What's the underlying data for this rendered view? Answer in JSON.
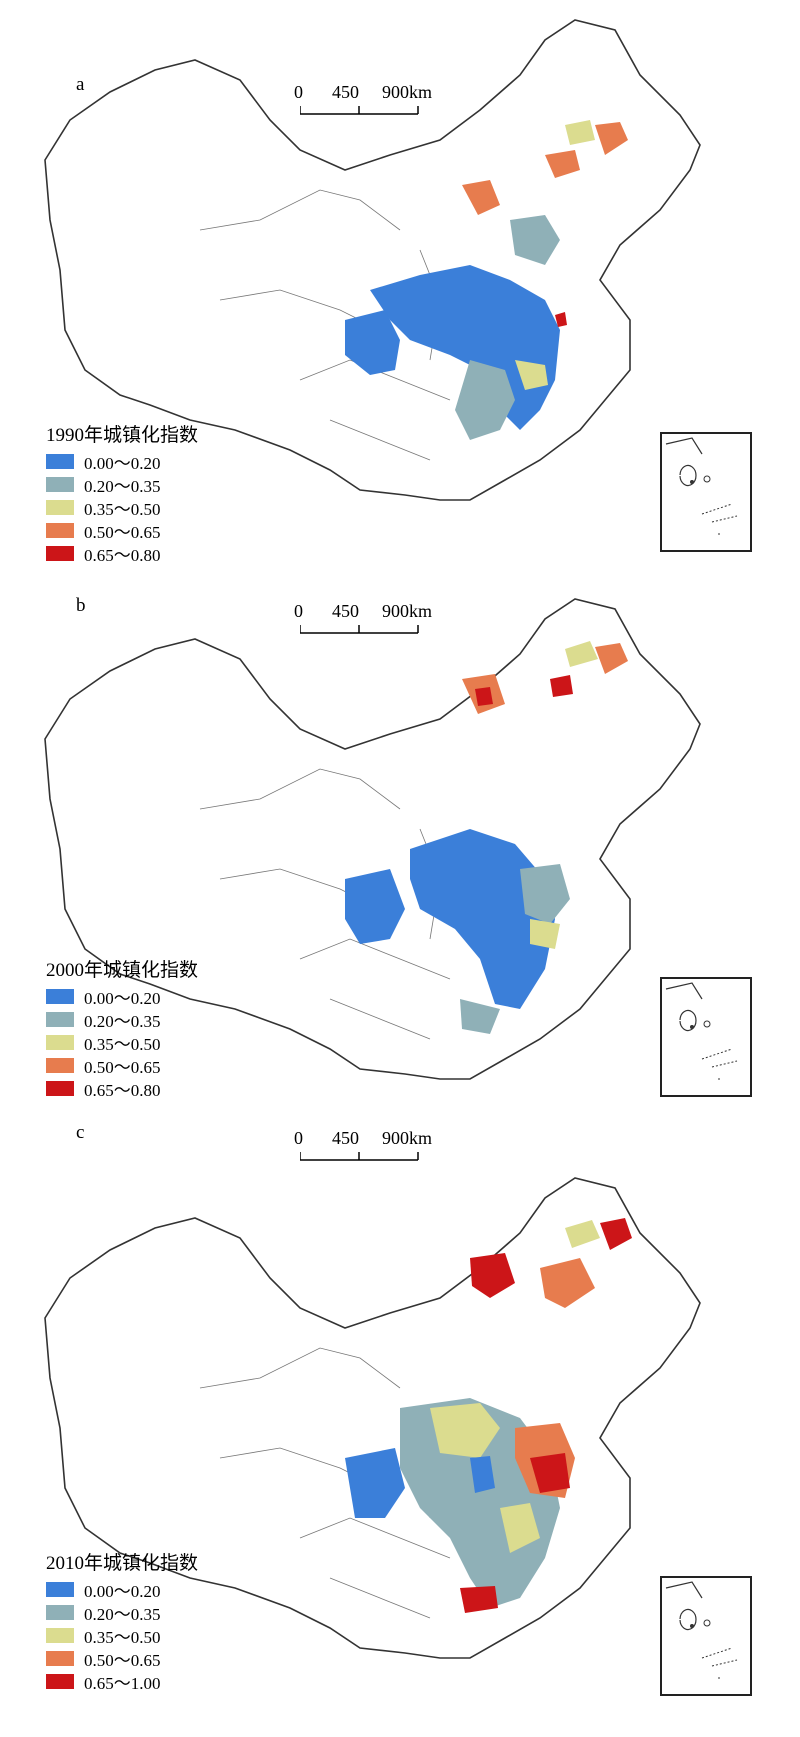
{
  "colors": {
    "class_1": "#3b7fd9",
    "class_2": "#8fb0b7",
    "class_3": "#dbdc8f",
    "class_4": "#e77c4e",
    "class_5": "#cc1518",
    "boundary": "#333333"
  },
  "scale": {
    "labels": [
      "0",
      "450",
      "900km"
    ]
  },
  "panels": [
    {
      "letter": "a",
      "legend": {
        "title": "1990年城镇化指数",
        "items": [
          {
            "label": "0.00～0.20",
            "color": "#3b7fd9"
          },
          {
            "label": "0.20～0.35",
            "color": "#8fb0b7"
          },
          {
            "label": "0.35～0.50",
            "color": "#dbdc8f"
          },
          {
            "label": "0.50～0.65",
            "color": "#e77c4e"
          },
          {
            "label": "0.65～0.80",
            "color": "#cc1518"
          }
        ]
      }
    },
    {
      "letter": "b",
      "legend": {
        "title": "2000年城镇化指数",
        "items": [
          {
            "label": "0.00～0.20",
            "color": "#3b7fd9"
          },
          {
            "label": "0.20～0.35",
            "color": "#8fb0b7"
          },
          {
            "label": "0.35～0.50",
            "color": "#dbdc8f"
          },
          {
            "label": "0.50～0.65",
            "color": "#e77c4e"
          },
          {
            "label": "0.65～0.80",
            "color": "#cc1518"
          }
        ]
      }
    },
    {
      "letter": "c",
      "legend": {
        "title": "2010年城镇化指数",
        "items": [
          {
            "label": "0.00～0.20",
            "color": "#3b7fd9"
          },
          {
            "label": "0.20～0.35",
            "color": "#8fb0b7"
          },
          {
            "label": "0.35～0.50",
            "color": "#dbdc8f"
          },
          {
            "label": "0.50～0.65",
            "color": "#e77c4e"
          },
          {
            "label": "0.65～1.00",
            "color": "#cc1518"
          }
        ]
      }
    }
  ]
}
